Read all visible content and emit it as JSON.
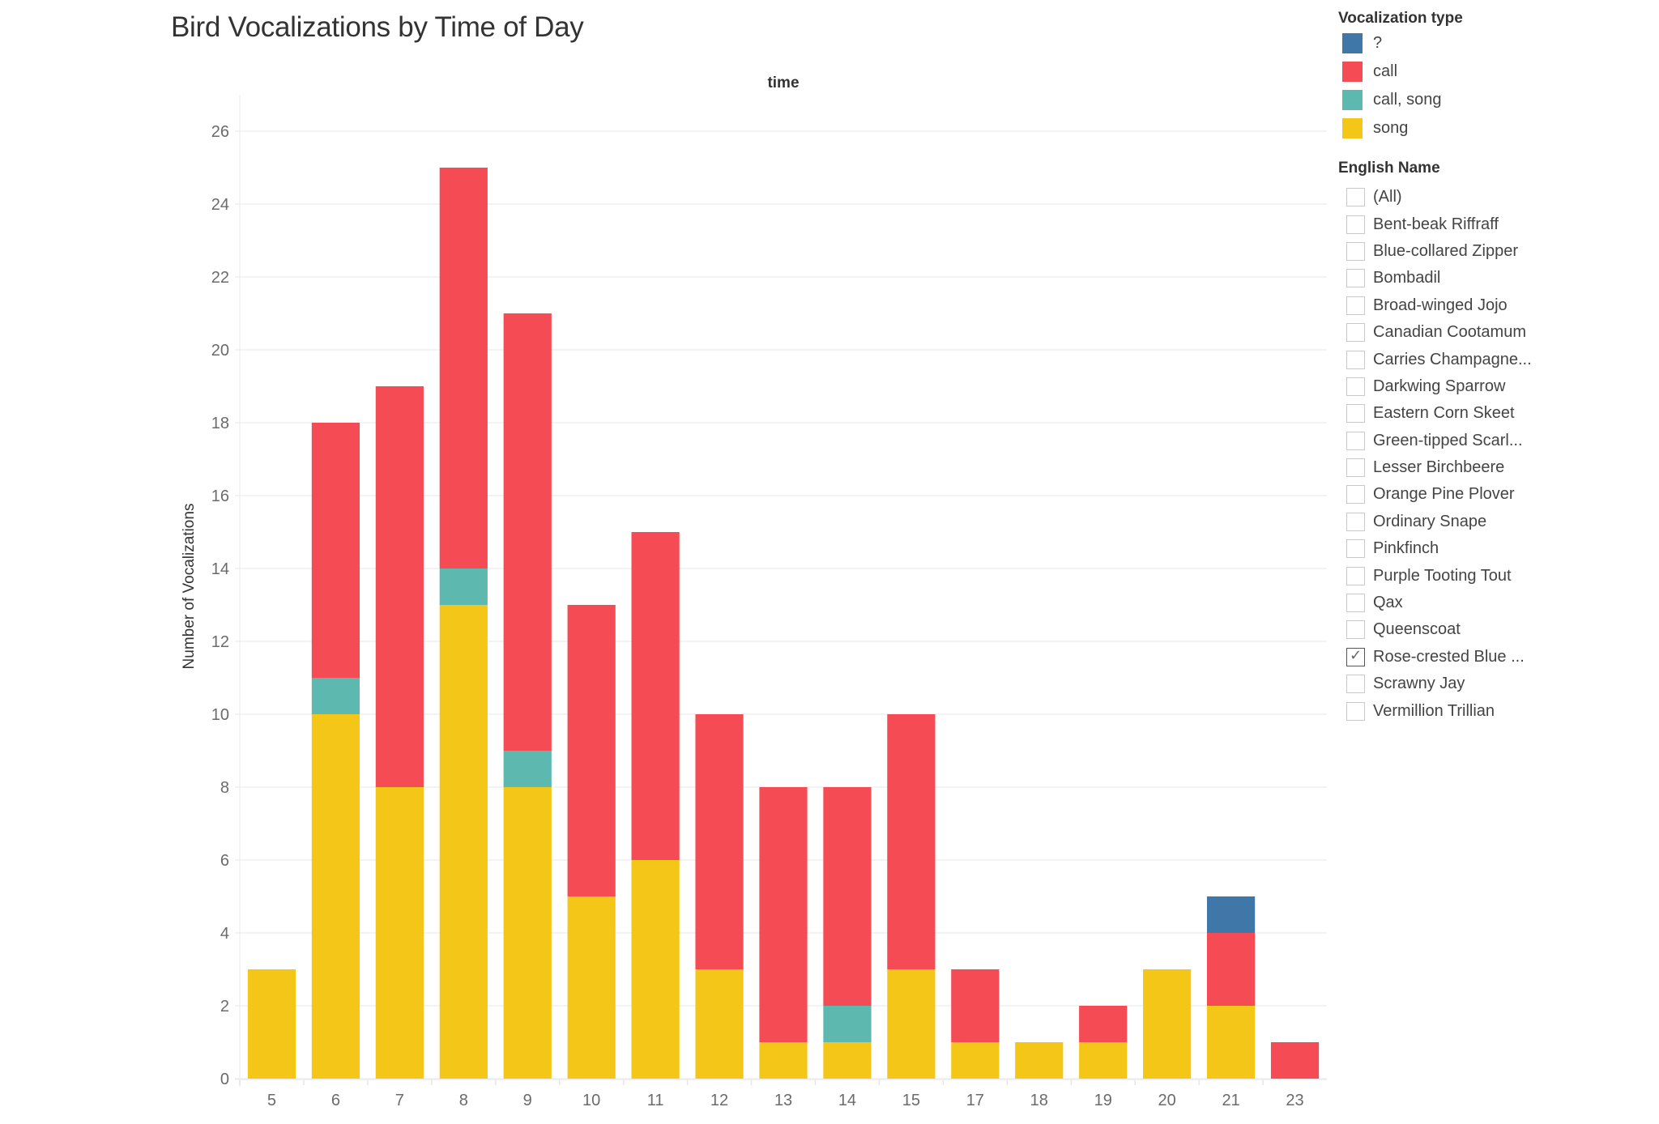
{
  "chart_data": {
    "type": "bar",
    "stacked": true,
    "title": "Bird Vocalizations by Time of Day",
    "column_header": "time",
    "xlabel": "",
    "ylabel": "Number of Vocalizations",
    "ylim": [
      0,
      27
    ],
    "yticks": [
      0,
      2,
      4,
      6,
      8,
      10,
      12,
      14,
      16,
      18,
      20,
      22,
      24,
      26
    ],
    "grid": true,
    "legend_position": "right",
    "categories": [
      "5",
      "6",
      "7",
      "8",
      "9",
      "10",
      "11",
      "12",
      "13",
      "14",
      "15",
      "17",
      "18",
      "19",
      "20",
      "21",
      "23"
    ],
    "series": [
      {
        "name": "song",
        "color": "#F3C618",
        "values": [
          3,
          10,
          8,
          13,
          8,
          5,
          6,
          3,
          1,
          1,
          3,
          1,
          1,
          1,
          3,
          2,
          0
        ]
      },
      {
        "name": "call, song",
        "color": "#5DB8B0",
        "values": [
          0,
          1,
          0,
          1,
          1,
          0,
          0,
          0,
          0,
          1,
          0,
          0,
          0,
          0,
          0,
          0,
          0
        ]
      },
      {
        "name": "call",
        "color": "#F44B55",
        "values": [
          0,
          7,
          11,
          11,
          12,
          8,
          9,
          7,
          7,
          6,
          7,
          2,
          0,
          1,
          0,
          2,
          1
        ]
      },
      {
        "name": "?",
        "color": "#3F78A8",
        "values": [
          0,
          0,
          0,
          0,
          0,
          0,
          0,
          0,
          0,
          0,
          0,
          0,
          0,
          0,
          0,
          1,
          0
        ]
      }
    ]
  },
  "legend": {
    "title": "Vocalization type",
    "items": [
      {
        "label": "?",
        "color": "#3F78A8"
      },
      {
        "label": "call",
        "color": "#F44B55"
      },
      {
        "label": "call, song",
        "color": "#5DB8B0"
      },
      {
        "label": "song",
        "color": "#F3C618"
      }
    ]
  },
  "filter": {
    "title": "English Name",
    "items": [
      {
        "label": "(All)",
        "checked": false
      },
      {
        "label": "Bent-beak Riffraff",
        "checked": false
      },
      {
        "label": "Blue-collared Zipper",
        "checked": false
      },
      {
        "label": "Bombadil",
        "checked": false
      },
      {
        "label": "Broad-winged Jojo",
        "checked": false
      },
      {
        "label": "Canadian Cootamum",
        "checked": false
      },
      {
        "label": "Carries Champagne...",
        "checked": false
      },
      {
        "label": "Darkwing Sparrow",
        "checked": false
      },
      {
        "label": "Eastern Corn Skeet",
        "checked": false
      },
      {
        "label": "Green-tipped Scarl...",
        "checked": false
      },
      {
        "label": "Lesser Birchbeere",
        "checked": false
      },
      {
        "label": "Orange Pine Plover",
        "checked": false
      },
      {
        "label": "Ordinary Snape",
        "checked": false
      },
      {
        "label": "Pinkfinch",
        "checked": false
      },
      {
        "label": "Purple Tooting Tout",
        "checked": false
      },
      {
        "label": "Qax",
        "checked": false
      },
      {
        "label": "Queenscoat",
        "checked": false
      },
      {
        "label": "Rose-crested Blue ...",
        "checked": true
      },
      {
        "label": "Scrawny Jay",
        "checked": false
      },
      {
        "label": "Vermillion Trillian",
        "checked": false
      }
    ]
  }
}
